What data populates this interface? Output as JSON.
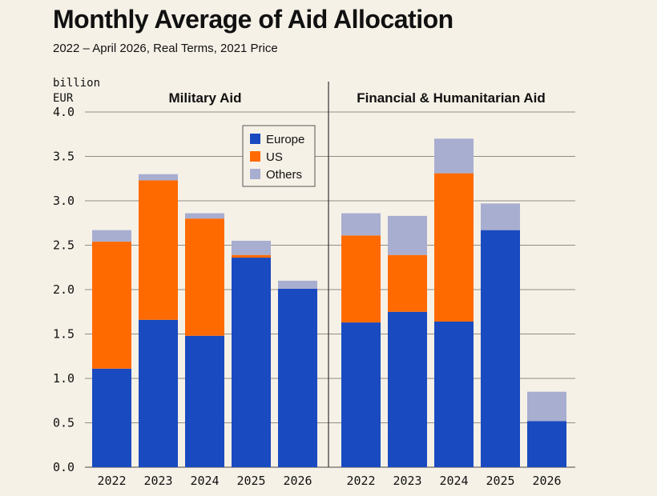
{
  "header": {
    "title": "Monthly Average of Aid Allocation",
    "subtitle": "2022 – April 2026, Real Terms, 2021 Price"
  },
  "colors": {
    "europe": "#1a4ac0",
    "us": "#ff6a00",
    "others": "#a8aed0",
    "background": "#f6f1e7",
    "grid": "#6d6b66"
  },
  "chart_data": {
    "type": "bar",
    "stacked": true,
    "ylabel_line1": "billion",
    "ylabel_line2": "EUR",
    "ylim": [
      0,
      4.0
    ],
    "yticks": [
      "0.0",
      "0.5",
      "1.0",
      "1.5",
      "2.0",
      "2.5",
      "3.0",
      "3.5",
      "4.0"
    ],
    "grid": true,
    "legend": {
      "placement": "top-center of left panel",
      "entries": [
        "Europe",
        "US",
        "Others"
      ]
    },
    "panels": [
      {
        "title": "Military Aid",
        "categories": [
          "2022",
          "2023",
          "2024",
          "2025",
          "2026"
        ],
        "series": [
          {
            "name": "Europe",
            "values": [
              1.11,
              1.66,
              1.48,
              2.36,
              2.01
            ]
          },
          {
            "name": "US",
            "values": [
              1.43,
              1.57,
              1.32,
              0.03,
              0.0
            ]
          },
          {
            "name": "Others",
            "values": [
              0.13,
              0.07,
              0.06,
              0.16,
              0.09
            ]
          }
        ]
      },
      {
        "title": "Financial & Humanitarian Aid",
        "categories": [
          "2022",
          "2023",
          "2024",
          "2025",
          "2026"
        ],
        "series": [
          {
            "name": "Europe",
            "values": [
              1.63,
              1.75,
              1.64,
              2.67,
              0.52
            ]
          },
          {
            "name": "US",
            "values": [
              0.98,
              0.64,
              1.67,
              0.0,
              0.0
            ]
          },
          {
            "name": "Others",
            "values": [
              0.25,
              0.44,
              0.39,
              0.3,
              0.33
            ]
          }
        ]
      }
    ]
  }
}
